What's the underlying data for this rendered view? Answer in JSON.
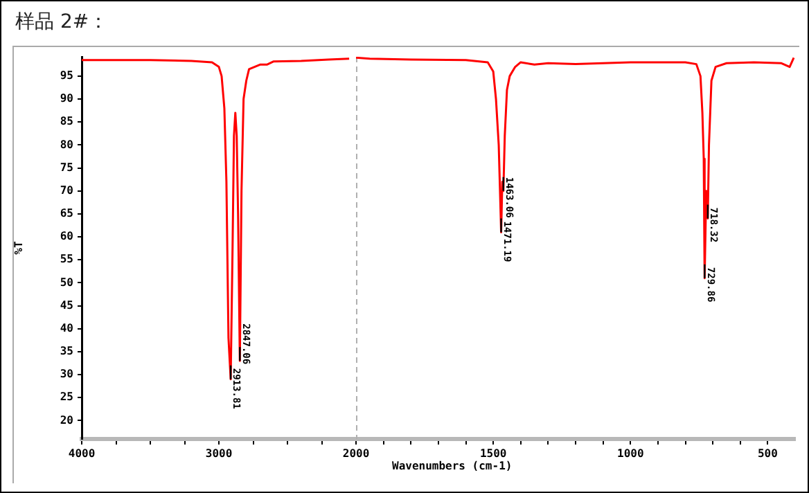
{
  "chart_data": [
    {
      "type": "line",
      "title": "样品 2#：",
      "ylabel": "%T",
      "x": [
        4000,
        3800,
        3500,
        3200,
        3050,
        3000,
        2980,
        2960,
        2945,
        2930,
        2913.81,
        2900,
        2890,
        2880,
        2870,
        2860,
        2847.06,
        2835,
        2820,
        2800,
        2780,
        2700,
        2650,
        2600,
        2400,
        2200,
        2050
      ],
      "series": [
        {
          "color": "#ff0000",
          "values": [
            98.5,
            98.5,
            98.5,
            98.3,
            98.0,
            97.0,
            95.0,
            88,
            72,
            38,
            29,
            58,
            82,
            87,
            82,
            65,
            33,
            70,
            90,
            94,
            96.5,
            97.5,
            97.5,
            98.2,
            98.3,
            98.6,
            98.8
          ]
        }
      ],
      "xlim": [
        4000,
        2000
      ],
      "xticks": [
        4000,
        {
          "value": 3750,
          "label": null
        },
        {
          "value": 3500,
          "label": null
        },
        {
          "value": 3250,
          "label": null
        },
        3000,
        {
          "value": 2750,
          "label": null
        },
        {
          "value": 2500,
          "label": null
        },
        {
          "value": 2250,
          "label": null
        }
      ],
      "ylim": [
        16,
        99.2
      ],
      "yticks": [
        20,
        25,
        30,
        35,
        40,
        45,
        50,
        55,
        60,
        65,
        70,
        75,
        80,
        85,
        90,
        95
      ],
      "annotations": [
        {
          "text": "2913.81",
          "x": 2913.81,
          "y": 29
        },
        {
          "text": "2847.06",
          "x": 2847.06,
          "y": 33
        }
      ],
      "grid": false,
      "legend": false,
      "marker": "none",
      "line_style": "solid"
    },
    {
      "type": "line",
      "xlabel": "Wavenumbers (cm-1)",
      "x": [
        2000,
        1950,
        1800,
        1600,
        1520,
        1500,
        1490,
        1480,
        1471.19,
        1467,
        1463.06,
        1458,
        1450,
        1440,
        1420,
        1400,
        1350,
        1300,
        1200,
        1100,
        1000,
        900,
        800,
        760,
        745,
        738,
        733,
        729.86,
        724,
        718.32,
        714,
        705,
        690,
        650,
        550,
        450,
        420,
        405
      ],
      "series": [
        {
          "color": "#ff0000",
          "values": [
            99,
            98.8,
            98.6,
            98.5,
            98,
            96,
            90,
            80,
            61,
            72,
            70,
            82,
            92,
            95,
            97,
            98,
            97.5,
            97.8,
            97.6,
            97.8,
            98,
            98,
            98,
            97.6,
            95,
            87,
            77,
            51,
            70,
            64,
            80,
            94,
            97,
            97.8,
            98,
            97.8,
            97,
            99
          ]
        }
      ],
      "xlim": [
        2000,
        400
      ],
      "xticks": [
        2000,
        {
          "value": 1900,
          "label": null
        },
        {
          "value": 1800,
          "label": null
        },
        {
          "value": 1700,
          "label": null
        },
        {
          "value": 1600,
          "label": null
        },
        1500,
        {
          "value": 1400,
          "label": null
        },
        {
          "value": 1300,
          "label": null
        },
        {
          "value": 1200,
          "label": null
        },
        {
          "value": 1100,
          "label": null
        },
        1000,
        {
          "value": 900,
          "label": null
        },
        {
          "value": 800,
          "label": null
        },
        {
          "value": 700,
          "label": null
        },
        {
          "value": 600,
          "label": null
        },
        500
      ],
      "ylim": [
        16,
        99.2
      ],
      "tick_labels": "x",
      "ref_lines": [
        {
          "axis": "x",
          "value": 2000,
          "color": "#b0b0b0",
          "line_style": "dashed"
        }
      ],
      "grid": false,
      "legend": false,
      "marker": "none",
      "annotations": [
        {
          "text": "1471.19",
          "x": 1471.19,
          "y": 61
        },
        {
          "text": "1463.06",
          "x": 1463.06,
          "y": 70
        },
        {
          "text": "729.86",
          "x": 729.86,
          "y": 51
        },
        {
          "text": "718.32",
          "x": 718.32,
          "y": 64
        }
      ],
      "line_style": "solid"
    }
  ]
}
